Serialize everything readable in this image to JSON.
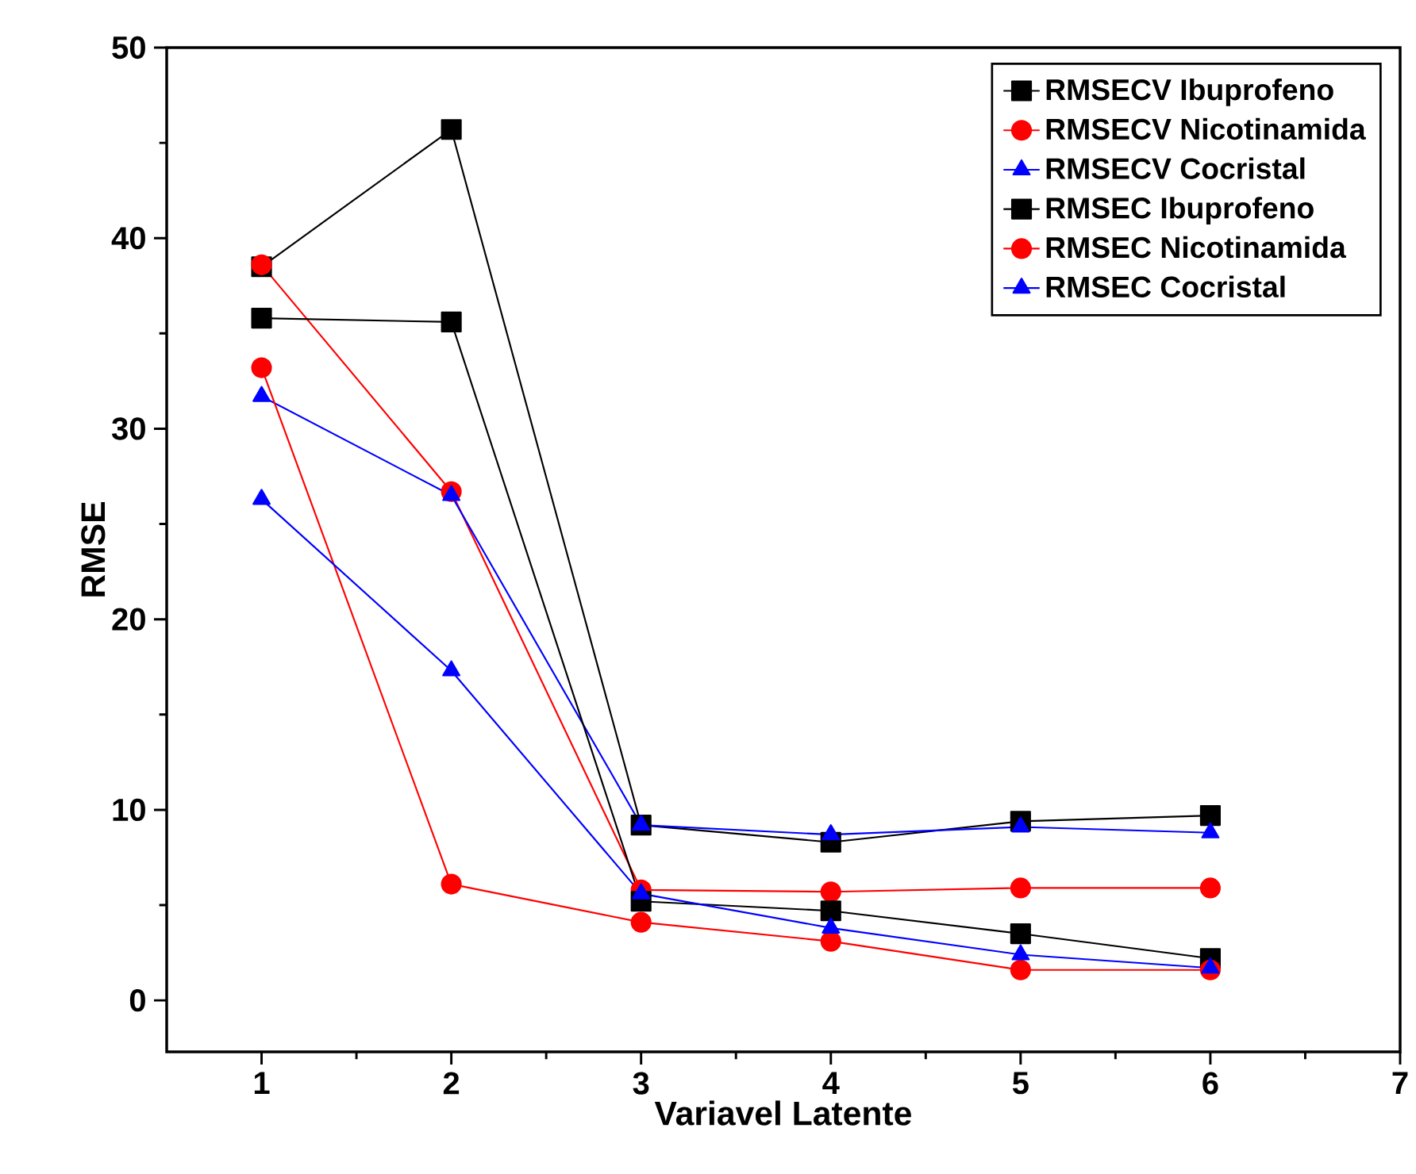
{
  "chart_data": {
    "type": "line",
    "xlabel": "Variavel Latente",
    "ylabel": "RMSE",
    "x": [
      1,
      2,
      3,
      4,
      5,
      6
    ],
    "xlim": [
      0.5,
      7
    ],
    "xticks": [
      1,
      2,
      3,
      4,
      5,
      6,
      7
    ],
    "ylim": [
      -2.7,
      50
    ],
    "yticks": [
      0,
      10,
      20,
      30,
      40,
      50
    ],
    "grid": false,
    "legend": "top right",
    "line_style": "solid",
    "series": [
      {
        "name": "RMSECV Ibuprofeno",
        "color": "#000000",
        "marker": "square",
        "values": [
          38.5,
          45.7,
          9.2,
          8.3,
          9.4,
          9.7
        ]
      },
      {
        "name": "RMSECV Nicotinamida",
        "color": "#ff0000",
        "marker": "circle",
        "values": [
          38.6,
          26.7,
          5.8,
          5.7,
          5.9,
          5.9
        ]
      },
      {
        "name": "RMSECV Cocristal",
        "color": "#0000ff",
        "marker": "triangle",
        "values": [
          31.7,
          26.5,
          9.2,
          8.7,
          9.1,
          8.8
        ]
      },
      {
        "name": "RMSEC Ibuprofeno",
        "color": "#000000",
        "marker": "square",
        "values": [
          35.8,
          35.6,
          5.2,
          4.7,
          3.5,
          2.2
        ]
      },
      {
        "name": "RMSEC Nicotinamida",
        "color": "#ff0000",
        "marker": "circle",
        "values": [
          33.2,
          6.1,
          4.1,
          3.1,
          1.6,
          1.6
        ]
      },
      {
        "name": "RMSEC Cocristal",
        "color": "#0000ff",
        "marker": "triangle",
        "values": [
          26.3,
          17.3,
          5.6,
          3.8,
          2.4,
          1.7
        ]
      }
    ]
  }
}
